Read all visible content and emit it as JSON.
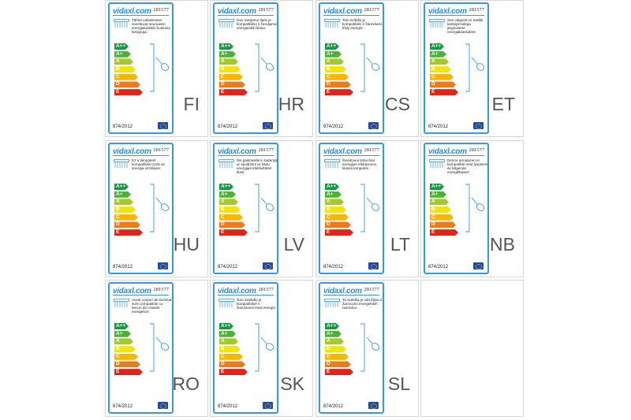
{
  "brand": "vida",
  "brand_suffix": "xl",
  "brand_domain": ".com",
  "sku": "281577",
  "regulation": "874/2012",
  "class_labels": [
    "A++",
    "A+",
    "A",
    "B",
    "C",
    "D",
    "E"
  ],
  "class_colors": [
    "#119c3e",
    "#4bb334",
    "#a3ca2b",
    "#f2e500",
    "#f7b600",
    "#ee7a1e",
    "#e2231a"
  ],
  "labels": [
    {
      "lang": "FI",
      "text": "Tähän valaisimeen soveltuvat seuraaviin energialuokkiin kuuluvia lamppuja:"
    },
    {
      "lang": "HR",
      "text": "Ovo rasvjetno tijelo je kompatibilno s žaruljama energetskih klasa:"
    },
    {
      "lang": "CS",
      "text": "Toto svítidlo je kompatibilní s žárovkami třídy energie:"
    },
    {
      "lang": "ET",
      "text": "See valgusti on sobilik lambipirnidega järgmistest energiaklassidest:"
    },
    {
      "lang": "HU",
      "text": "Ez a lámpatest kompatibilis izzók az energia osztályok:"
    },
    {
      "lang": "LV",
      "text": "Šis gaismeklis ir saderīgs ar spuldzēm ar šādu enerģijas efektivitātes klasi:"
    },
    {
      "lang": "LT",
      "text": "Šviestuvui tinka šios energijos efektyvumo klasės lemputės:"
    },
    {
      "lang": "NB",
      "text": "Denne armaturen er kompatibel med lyspærer av følgende energiklasser:"
    },
    {
      "lang": "RO",
      "text": "Acest corpuri de iluminat sunt compatibile cu becuri din clasele energetice:"
    },
    {
      "lang": "SK",
      "text": "Toto svietidlo je kompatibilné s žiarovkami tried energie:"
    },
    {
      "lang": "SL",
      "text": "Ta svetilka je združljiva s žarnicami energetskih razredov:"
    }
  ]
}
